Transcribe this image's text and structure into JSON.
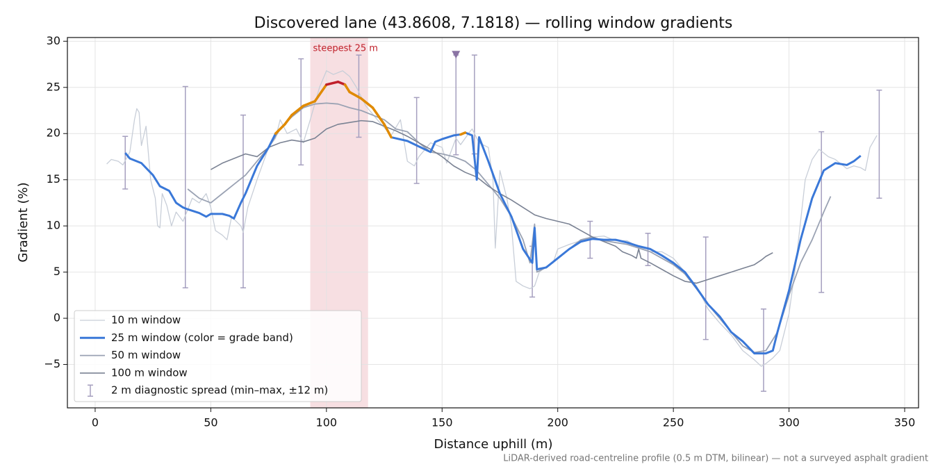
{
  "chart_data": {
    "type": "line",
    "title": "Discovered lane (43.8608, 7.1818) — rolling window gradients",
    "xlabel": "Distance uphill (m)",
    "ylabel": "Gradient (%)",
    "footnote": "LiDAR-derived road-centreline profile (0.5 m DTM, bilinear) — not a surveyed asphalt gradient",
    "xlim": [
      -12,
      356
    ],
    "ylim": [
      -9.7,
      30.4
    ],
    "xticks": [
      0,
      50,
      100,
      150,
      200,
      250,
      300,
      350
    ],
    "yticks": [
      {
        "value": -5,
        "label": "−5"
      },
      0,
      5,
      10,
      15,
      20,
      25,
      30
    ],
    "grid": true,
    "legend": "lower left",
    "span": {
      "x": [
        93,
        118
      ],
      "color": "#e8a4ac",
      "label": "steepest 25 m",
      "label_color": "#c0202a"
    },
    "series": [
      {
        "name": "10 m window",
        "color": "#c8ced8",
        "width": 1.3,
        "x": [
          5,
          7,
          10,
          12,
          15,
          17,
          18,
          19,
          20,
          22,
          24,
          26,
          27,
          28,
          29,
          31,
          33,
          35,
          38,
          42,
          45,
          48,
          50,
          52,
          55,
          57,
          59,
          61,
          63,
          64,
          66,
          70,
          75,
          78,
          80,
          83,
          87,
          90,
          93,
          97,
          100,
          103,
          107,
          110,
          113,
          117,
          122,
          128,
          132,
          135,
          138,
          140,
          145,
          150,
          152,
          156,
          158,
          162,
          163,
          166,
          170,
          172,
          173,
          175,
          178,
          180,
          182,
          185,
          188,
          190,
          192,
          195,
          198,
          200,
          205,
          210,
          215,
          220,
          225,
          230,
          235,
          240,
          245,
          250,
          255,
          260,
          265,
          270,
          275,
          280,
          285,
          288,
          290,
          293,
          296,
          300,
          303,
          307,
          310,
          313,
          317,
          320,
          325,
          328,
          331,
          333,
          335,
          338
        ],
        "values": [
          16.7,
          17.2,
          17.0,
          16.6,
          18.0,
          21.5,
          22.7,
          22.3,
          18.7,
          20.8,
          15.0,
          13.0,
          10.0,
          9.8,
          13.5,
          12.2,
          10.0,
          11.5,
          10.5,
          13.0,
          12.5,
          13.5,
          12.0,
          9.5,
          9.0,
          8.5,
          11.0,
          10.5,
          10.0,
          9.3,
          12.0,
          15.0,
          18.5,
          19.5,
          21.5,
          20.0,
          20.5,
          19.0,
          21.5,
          25.0,
          26.8,
          26.4,
          26.8,
          26.2,
          25.0,
          23.0,
          21.5,
          19.8,
          21.5,
          17.0,
          16.5,
          17.5,
          19.0,
          18.5,
          16.8,
          19.5,
          18.8,
          20.2,
          20.5,
          19.0,
          18.5,
          15.0,
          7.6,
          16.0,
          13.0,
          10.0,
          4.0,
          3.5,
          3.2,
          3.5,
          5.0,
          5.6,
          6.0,
          7.5,
          8.0,
          8.4,
          8.8,
          8.9,
          8.4,
          8.4,
          7.7,
          7.2,
          7.2,
          6.5,
          5.0,
          3.5,
          1.0,
          -0.5,
          -1.8,
          -3.5,
          -4.5,
          -5.2,
          -4.9,
          -4.3,
          -3.5,
          0.5,
          6.0,
          15.0,
          17.2,
          18.3,
          17.5,
          17.2,
          16.2,
          16.5,
          16.3,
          16.0,
          18.5,
          19.8
        ]
      },
      {
        "name": "25 m window (color = grade band)",
        "color": "#3a78d8",
        "width": 3,
        "bands": [
          {
            "from": 20,
            "color": "#e08a00"
          },
          {
            "from": 25,
            "color": "#c0202a"
          }
        ],
        "x": [
          13,
          15,
          20,
          25,
          28,
          32,
          35,
          38,
          40,
          45,
          48,
          50,
          55,
          58,
          60,
          63,
          65,
          70,
          75,
          78,
          82,
          85,
          90,
          95,
          100,
          105,
          108,
          110,
          115,
          120,
          125,
          128,
          135,
          140,
          145,
          147,
          150,
          155,
          158,
          160,
          163,
          165,
          166,
          170,
          175,
          180,
          185,
          189,
          190,
          191,
          195,
          200,
          205,
          210,
          215,
          220,
          225,
          230,
          235,
          240,
          245,
          250,
          255,
          260,
          265,
          270,
          275,
          280,
          285,
          290,
          293,
          295,
          300,
          305,
          310,
          315,
          320,
          325,
          328,
          331
        ],
        "values": [
          17.9,
          17.3,
          16.8,
          15.5,
          14.3,
          13.8,
          12.5,
          12.0,
          11.8,
          11.4,
          11.0,
          11.3,
          11.3,
          11.1,
          10.8,
          12.5,
          13.5,
          16.5,
          18.5,
          20.0,
          21.0,
          22.0,
          23.0,
          23.5,
          25.3,
          25.6,
          25.3,
          24.5,
          23.8,
          22.8,
          21.0,
          19.6,
          19.2,
          18.6,
          18.0,
          19.1,
          19.4,
          19.8,
          19.9,
          20.1,
          19.8,
          15.0,
          19.6,
          17.0,
          13.5,
          11.0,
          7.5,
          6.0,
          9.8,
          5.3,
          5.5,
          6.5,
          7.5,
          8.3,
          8.6,
          8.5,
          8.5,
          8.2,
          7.8,
          7.5,
          6.8,
          6.0,
          5.0,
          3.3,
          1.5,
          0.2,
          -1.5,
          -2.5,
          -3.8,
          -3.8,
          -3.5,
          -1.5,
          3.0,
          8.5,
          13.0,
          16.0,
          16.8,
          16.6,
          17.0,
          17.6
        ]
      },
      {
        "name": "50 m window",
        "color": "#9aa2b3",
        "width": 1.8,
        "x": [
          40,
          45,
          50,
          55,
          60,
          65,
          70,
          75,
          80,
          85,
          90,
          95,
          100,
          105,
          110,
          115,
          120,
          125,
          130,
          135,
          140,
          145,
          150,
          155,
          160,
          165,
          170,
          175,
          180,
          185,
          188,
          190,
          191,
          195,
          200,
          205,
          210,
          215,
          220,
          225,
          230,
          235,
          240,
          245,
          250,
          255,
          260,
          265,
          270,
          275,
          280,
          285,
          290,
          295,
          300,
          305,
          310,
          315,
          318
        ],
        "values": [
          14.0,
          13.0,
          12.5,
          13.5,
          14.5,
          15.5,
          17.0,
          18.5,
          20.5,
          21.8,
          22.8,
          23.2,
          23.3,
          23.2,
          22.8,
          22.5,
          22.0,
          21.5,
          20.5,
          20.2,
          19.0,
          18.0,
          17.8,
          17.5,
          17.0,
          16.0,
          14.5,
          13.0,
          11.0,
          8.5,
          6.0,
          10.2,
          5.0,
          5.5,
          6.5,
          7.5,
          8.5,
          8.8,
          8.4,
          8.2,
          8.0,
          7.6,
          7.2,
          6.5,
          5.8,
          4.8,
          3.2,
          1.5,
          0.0,
          -1.5,
          -3.0,
          -3.7,
          -3.5,
          -1.5,
          2.5,
          6.0,
          8.5,
          11.5,
          13.2
        ]
      },
      {
        "name": "100 m window",
        "color": "#7a8293",
        "width": 1.6,
        "x": [
          50,
          55,
          60,
          65,
          70,
          75,
          80,
          85,
          90,
          95,
          100,
          105,
          110,
          115,
          120,
          125,
          130,
          135,
          140,
          145,
          150,
          155,
          160,
          165,
          170,
          175,
          180,
          185,
          190,
          195,
          200,
          205,
          210,
          215,
          220,
          225,
          228,
          230,
          232,
          234,
          235,
          236,
          240,
          245,
          250,
          255,
          260,
          265,
          270,
          275,
          280,
          285,
          288,
          290,
          293
        ],
        "values": [
          16.1,
          16.8,
          17.3,
          17.8,
          17.5,
          18.5,
          19.0,
          19.3,
          19.1,
          19.5,
          20.5,
          21.0,
          21.2,
          21.4,
          21.3,
          20.8,
          20.3,
          19.7,
          19.0,
          18.3,
          17.5,
          16.5,
          15.8,
          15.3,
          14.3,
          13.5,
          12.8,
          12.0,
          11.2,
          10.8,
          10.5,
          10.2,
          9.5,
          8.8,
          8.3,
          7.8,
          7.2,
          7.0,
          6.8,
          6.5,
          7.5,
          6.5,
          6.0,
          5.3,
          4.6,
          4.0,
          3.8,
          4.2,
          4.6,
          5.0,
          5.4,
          5.8,
          6.3,
          6.7,
          7.1
        ]
      }
    ],
    "errorbars": {
      "name": "2 m diagnostic spread (min–max, ±12 m)",
      "color": "#a59fbf",
      "x": [
        13,
        39,
        64,
        89,
        114,
        139,
        156,
        164,
        189,
        214,
        239,
        264,
        289,
        314,
        339
      ],
      "low": [
        14.0,
        3.3,
        3.3,
        16.6,
        19.6,
        14.6,
        17.7,
        17.8,
        2.3,
        6.5,
        5.7,
        -2.3,
        -7.9,
        2.8,
        13.0
      ],
      "high": [
        19.7,
        25.1,
        22.0,
        28.1,
        28.5,
        23.9,
        28.5,
        28.5,
        7.8,
        10.5,
        9.2,
        8.8,
        1.0,
        20.2,
        24.7
      ]
    },
    "marker": {
      "x": 156,
      "y": 28.5,
      "color": "#8a74a4"
    }
  }
}
